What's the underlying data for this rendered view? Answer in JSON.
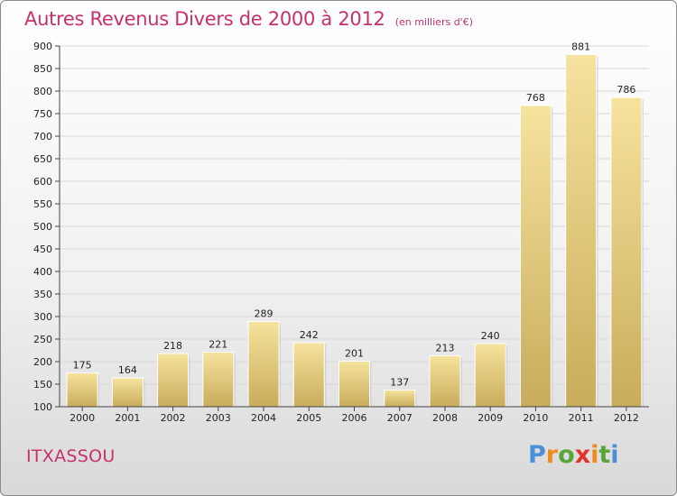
{
  "header": {
    "title": "Autres Revenus Divers de 2000 à 2012",
    "subtitle": "(en milliers d'€)"
  },
  "footer": {
    "city": "ITXASSOU",
    "logo_text": "Proxiti"
  },
  "colors": {
    "title": "#c8306b",
    "bar_light": "#f6e39d",
    "bar_dark": "#c9ac5c",
    "logo": [
      "#4b8fd9",
      "#f28a1e",
      "#58a63a",
      "#e0342b",
      "#f28a1e",
      "#58a63a",
      "#4b8fd9"
    ]
  },
  "chart_data": {
    "type": "bar",
    "title": "Autres Revenus Divers de 2000 à 2012",
    "subtitle": "(en milliers d'€)",
    "categories": [
      "2000",
      "2001",
      "2002",
      "2003",
      "2004",
      "2005",
      "2006",
      "2007",
      "2008",
      "2009",
      "2010",
      "2011",
      "2012"
    ],
    "values": [
      175,
      164,
      218,
      221,
      289,
      242,
      201,
      137,
      213,
      240,
      768,
      881,
      786
    ],
    "ylim": [
      100,
      900
    ],
    "yticks": [
      100,
      150,
      200,
      250,
      300,
      350,
      400,
      450,
      500,
      550,
      600,
      650,
      700,
      750,
      800,
      850,
      900
    ],
    "grid": true,
    "data_labels": true
  }
}
